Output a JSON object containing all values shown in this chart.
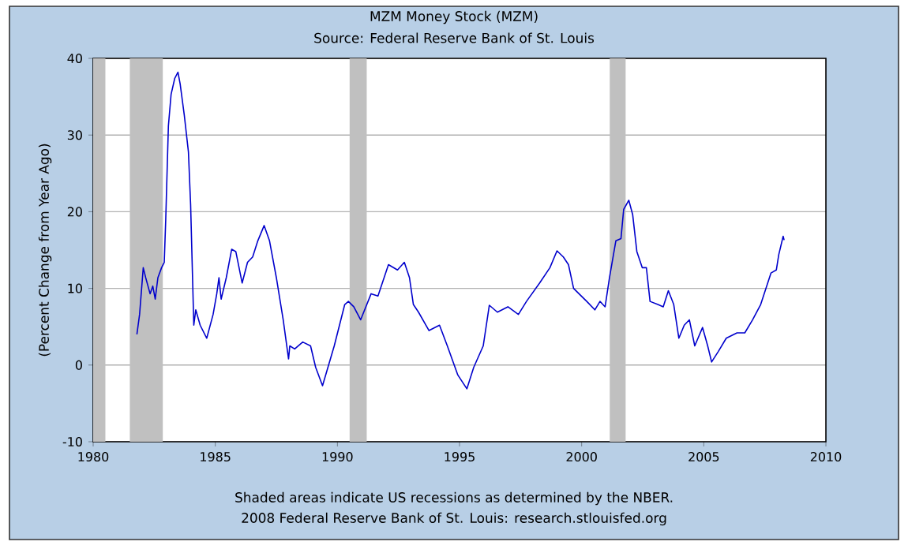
{
  "chart_data": {
    "type": "line",
    "title": "MZM Money Stock (MZM)",
    "subtitle": "Source: Federal Reserve Bank of St. Louis",
    "ylabel": "(Percent Change from Year Ago)",
    "annotations": [
      "Shaded areas indicate US recessions as determined by the NBER.",
      "2008 Federal Reserve Bank of St. Louis: research.stlouisfed.org"
    ],
    "xlim": [
      1980,
      2010
    ],
    "xticks": [
      1980,
      1985,
      1990,
      1995,
      2000,
      2005,
      2010
    ],
    "ylim": [
      -10,
      40
    ],
    "yticks": [
      -10,
      0,
      10,
      20,
      30,
      40
    ],
    "grid": "y",
    "marker": "none",
    "line_style": "solid",
    "bands": [
      {
        "axis": "x",
        "from": 1980.0,
        "to": 1980.5,
        "color": "#c0c0c0"
      },
      {
        "axis": "x",
        "from": 1981.5,
        "to": 1982.85,
        "color": "#c0c0c0"
      },
      {
        "axis": "x",
        "from": 1990.5,
        "to": 1991.2,
        "color": "#c0c0c0"
      },
      {
        "axis": "x",
        "from": 2001.15,
        "to": 2001.8,
        "color": "#c0c0c0"
      }
    ],
    "series": [
      {
        "color": "#0000cc",
        "x": [
          1981.79,
          1981.9,
          1982.05,
          1982.15,
          1982.33,
          1982.44,
          1982.54,
          1982.65,
          1982.8,
          1982.91,
          1982.97,
          1983.08,
          1983.19,
          1983.34,
          1983.47,
          1983.56,
          1983.73,
          1983.9,
          1983.99,
          1984.12,
          1984.2,
          1984.38,
          1984.65,
          1984.91,
          1985.06,
          1985.15,
          1985.24,
          1985.45,
          1985.67,
          1985.84,
          1986.1,
          1986.32,
          1986.53,
          1986.74,
          1987.0,
          1987.22,
          1987.5,
          1987.78,
          1988.0,
          1988.05,
          1988.25,
          1988.58,
          1988.9,
          1989.11,
          1989.39,
          1989.87,
          1990.3,
          1990.45,
          1990.67,
          1990.95,
          1991.38,
          1991.66,
          1992.09,
          1992.46,
          1992.74,
          1992.95,
          1993.11,
          1993.32,
          1993.75,
          1994.18,
          1994.5,
          1994.93,
          1995.3,
          1995.58,
          1995.97,
          1996.22,
          1996.55,
          1996.98,
          1997.41,
          1997.74,
          1998.28,
          1998.7,
          1998.99,
          1999.25,
          1999.46,
          1999.67,
          1999.89,
          2000.21,
          2000.54,
          2000.75,
          2000.96,
          2001.14,
          2001.4,
          2001.61,
          2001.72,
          2001.93,
          2002.09,
          2002.26,
          2002.48,
          2002.65,
          2002.8,
          2003.12,
          2003.34,
          2003.55,
          2003.77,
          2003.98,
          2004.2,
          2004.41,
          2004.63,
          2004.95,
          2005.16,
          2005.32,
          2005.6,
          2005.92,
          2006.36,
          2006.68,
          2007.0,
          2007.33,
          2007.75,
          2007.97,
          2008.07,
          2008.25,
          2008.29
        ],
        "values": [
          4.0,
          6.6,
          12.7,
          11.4,
          9.3,
          10.3,
          8.6,
          11.4,
          12.7,
          13.4,
          18.9,
          31.2,
          35.3,
          37.4,
          38.2,
          36.7,
          32.6,
          27.8,
          20.9,
          5.2,
          7.2,
          5.2,
          3.5,
          6.6,
          9.3,
          11.4,
          8.6,
          11.4,
          15.1,
          14.8,
          10.7,
          13.4,
          14.1,
          16.2,
          18.2,
          16.2,
          11.4,
          5.9,
          0.8,
          2.5,
          2.1,
          3.0,
          2.5,
          -0.3,
          -2.7,
          2.5,
          7.9,
          8.3,
          7.6,
          5.9,
          9.3,
          9.0,
          13.1,
          12.4,
          13.4,
          11.4,
          7.9,
          6.9,
          4.5,
          5.2,
          2.5,
          -1.3,
          -3.1,
          -0.3,
          2.5,
          7.8,
          6.9,
          7.6,
          6.6,
          8.3,
          10.7,
          12.7,
          14.9,
          14.1,
          13.1,
          10.0,
          9.3,
          8.3,
          7.2,
          8.3,
          7.6,
          11.4,
          16.2,
          16.5,
          20.3,
          21.5,
          19.6,
          14.8,
          12.7,
          12.7,
          8.3,
          7.9,
          7.6,
          9.7,
          7.9,
          3.5,
          5.2,
          5.9,
          2.5,
          4.9,
          2.5,
          0.4,
          1.8,
          3.5,
          4.2,
          4.2,
          5.9,
          7.9,
          12.0,
          12.4,
          14.4,
          16.8,
          16.3
        ]
      }
    ]
  }
}
